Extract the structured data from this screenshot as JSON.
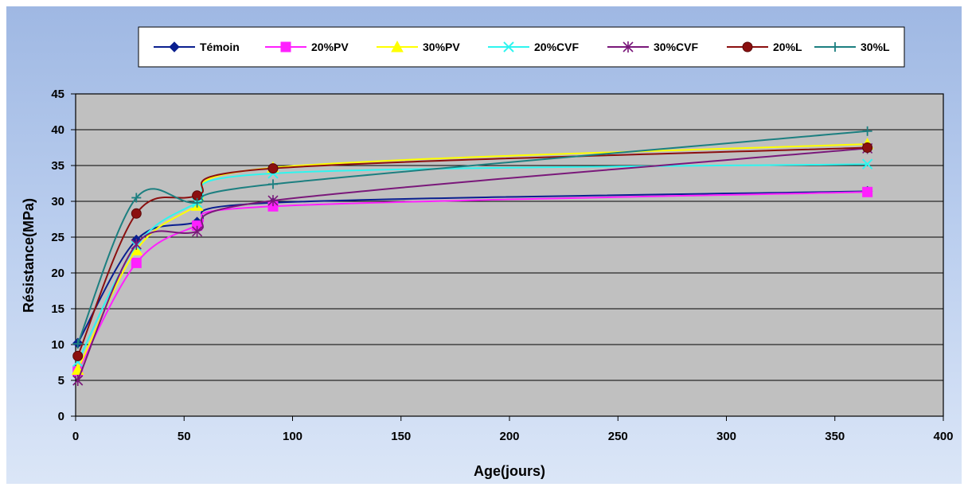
{
  "chart_data": {
    "type": "line",
    "xlabel": "Age(jours)",
    "ylabel": "Résistance(MPa)",
    "xlim": [
      0,
      400
    ],
    "ylim": [
      0,
      45
    ],
    "xticks": [
      0,
      50,
      100,
      150,
      200,
      250,
      300,
      350,
      400
    ],
    "yticks": [
      0,
      5,
      10,
      15,
      20,
      25,
      30,
      35,
      40,
      45
    ],
    "grid": "horizontal",
    "legend_position": "top",
    "x": [
      1,
      28,
      56,
      91,
      365
    ],
    "series": [
      {
        "name": "Témoin",
        "color": "#0a1f8f",
        "marker": "diamond",
        "values": [
          10.2,
          24.6,
          27.1,
          29.8,
          31.4
        ]
      },
      {
        "name": "20%PV",
        "color": "#ff20ff",
        "marker": "square",
        "values": [
          6.3,
          21.4,
          26.6,
          29.3,
          31.3
        ]
      },
      {
        "name": "30%PV",
        "color": "#ffff00",
        "marker": "triangle",
        "values": [
          6.5,
          23.2,
          29.4,
          34.7,
          38.0
        ]
      },
      {
        "name": "20%CVF",
        "color": "#2ef5ef",
        "marker": "x",
        "values": [
          7.6,
          23.8,
          29.8,
          33.9,
          35.2
        ]
      },
      {
        "name": "30%CVF",
        "color": "#7a187a",
        "marker": "star",
        "values": [
          5.0,
          24.0,
          25.8,
          30.1,
          37.4
        ]
      },
      {
        "name": "20%L",
        "color": "#8b0f0f",
        "marker": "circle",
        "values": [
          8.4,
          28.3,
          30.8,
          34.6,
          37.5
        ]
      },
      {
        "name": "30%L",
        "color": "#1c7f80",
        "marker": "plus",
        "values": [
          10.1,
          30.5,
          29.8,
          32.4,
          39.8
        ]
      }
    ]
  }
}
